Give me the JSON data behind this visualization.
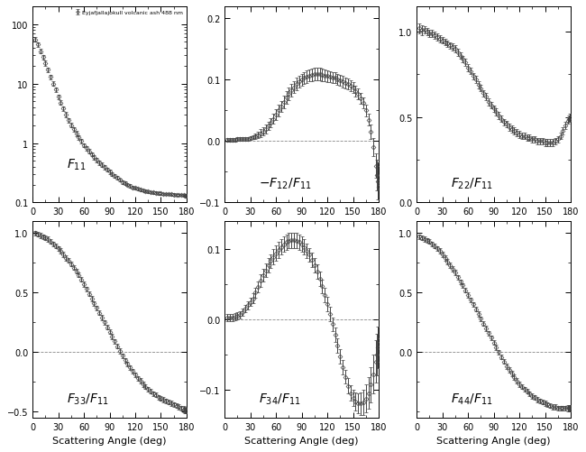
{
  "title": "Eyjafjallajokull volcanic ash 488 nm",
  "angles": [
    3,
    6,
    9,
    12,
    15,
    18,
    21,
    24,
    27,
    30,
    33,
    36,
    39,
    42,
    45,
    48,
    51,
    54,
    57,
    60,
    63,
    66,
    69,
    72,
    75,
    78,
    81,
    84,
    87,
    90,
    93,
    96,
    99,
    102,
    105,
    108,
    111,
    114,
    117,
    120,
    123,
    126,
    129,
    132,
    135,
    138,
    141,
    144,
    147,
    150,
    153,
    156,
    159,
    162,
    165,
    168,
    171,
    174,
    177,
    178,
    179,
    180
  ],
  "F11": [
    55,
    45,
    35,
    28,
    22,
    17,
    13,
    10,
    8,
    6,
    4.8,
    3.8,
    3.0,
    2.4,
    2.0,
    1.7,
    1.45,
    1.25,
    1.08,
    0.92,
    0.82,
    0.73,
    0.65,
    0.58,
    0.52,
    0.47,
    0.43,
    0.39,
    0.36,
    0.33,
    0.3,
    0.28,
    0.26,
    0.24,
    0.22,
    0.21,
    0.2,
    0.19,
    0.18,
    0.175,
    0.17,
    0.165,
    0.16,
    0.155,
    0.152,
    0.15,
    0.148,
    0.145,
    0.143,
    0.142,
    0.14,
    0.139,
    0.138,
    0.137,
    0.136,
    0.135,
    0.134,
    0.133,
    0.132,
    0.131,
    0.13,
    0.13
  ],
  "F11_err": [
    5,
    4,
    3,
    2.5,
    2,
    1.5,
    1.2,
    0.9,
    0.7,
    0.5,
    0.4,
    0.35,
    0.28,
    0.22,
    0.18,
    0.15,
    0.13,
    0.11,
    0.09,
    0.08,
    0.07,
    0.06,
    0.055,
    0.05,
    0.045,
    0.04,
    0.035,
    0.03,
    0.028,
    0.025,
    0.022,
    0.02,
    0.018,
    0.016,
    0.015,
    0.013,
    0.012,
    0.011,
    0.01,
    0.01,
    0.009,
    0.009,
    0.008,
    0.008,
    0.008,
    0.007,
    0.007,
    0.007,
    0.007,
    0.007,
    0.006,
    0.006,
    0.006,
    0.006,
    0.006,
    0.006,
    0.006,
    0.005,
    0.005,
    0.005,
    0.005,
    0.005
  ],
  "F12": [
    0.002,
    0.002,
    0.002,
    0.002,
    0.003,
    0.003,
    0.003,
    0.003,
    0.004,
    0.005,
    0.006,
    0.008,
    0.01,
    0.013,
    0.016,
    0.02,
    0.025,
    0.03,
    0.036,
    0.043,
    0.05,
    0.057,
    0.064,
    0.071,
    0.077,
    0.083,
    0.088,
    0.093,
    0.097,
    0.1,
    0.103,
    0.105,
    0.107,
    0.108,
    0.109,
    0.109,
    0.109,
    0.108,
    0.107,
    0.106,
    0.105,
    0.104,
    0.103,
    0.101,
    0.099,
    0.097,
    0.095,
    0.093,
    0.09,
    0.087,
    0.082,
    0.077,
    0.07,
    0.062,
    0.05,
    0.035,
    0.015,
    -0.01,
    -0.04,
    -0.055,
    -0.065,
    -0.075
  ],
  "F12_err": [
    0.003,
    0.003,
    0.003,
    0.003,
    0.003,
    0.003,
    0.003,
    0.003,
    0.003,
    0.003,
    0.003,
    0.004,
    0.005,
    0.006,
    0.006,
    0.007,
    0.007,
    0.008,
    0.008,
    0.009,
    0.009,
    0.009,
    0.01,
    0.01,
    0.01,
    0.01,
    0.01,
    0.01,
    0.01,
    0.01,
    0.01,
    0.01,
    0.01,
    0.01,
    0.01,
    0.01,
    0.01,
    0.01,
    0.01,
    0.01,
    0.009,
    0.009,
    0.009,
    0.009,
    0.009,
    0.009,
    0.009,
    0.009,
    0.009,
    0.009,
    0.009,
    0.009,
    0.009,
    0.009,
    0.01,
    0.01,
    0.012,
    0.015,
    0.02,
    0.025,
    0.03,
    0.035
  ],
  "F22": [
    1.02,
    1.01,
    1.01,
    1.0,
    0.99,
    0.99,
    0.98,
    0.97,
    0.96,
    0.95,
    0.94,
    0.93,
    0.92,
    0.91,
    0.9,
    0.88,
    0.86,
    0.84,
    0.82,
    0.79,
    0.77,
    0.74,
    0.72,
    0.69,
    0.67,
    0.64,
    0.62,
    0.59,
    0.57,
    0.55,
    0.53,
    0.51,
    0.49,
    0.47,
    0.46,
    0.44,
    0.43,
    0.42,
    0.41,
    0.4,
    0.39,
    0.39,
    0.38,
    0.38,
    0.37,
    0.37,
    0.36,
    0.36,
    0.36,
    0.35,
    0.35,
    0.35,
    0.35,
    0.36,
    0.37,
    0.39,
    0.42,
    0.45,
    0.48,
    0.49,
    0.5,
    0.5
  ],
  "F22_err": [
    0.03,
    0.03,
    0.02,
    0.02,
    0.02,
    0.02,
    0.02,
    0.02,
    0.02,
    0.02,
    0.02,
    0.02,
    0.02,
    0.02,
    0.02,
    0.02,
    0.02,
    0.02,
    0.02,
    0.02,
    0.02,
    0.02,
    0.02,
    0.02,
    0.02,
    0.02,
    0.02,
    0.02,
    0.02,
    0.02,
    0.02,
    0.02,
    0.02,
    0.02,
    0.02,
    0.02,
    0.02,
    0.02,
    0.02,
    0.02,
    0.02,
    0.02,
    0.02,
    0.02,
    0.02,
    0.02,
    0.02,
    0.02,
    0.02,
    0.02,
    0.02,
    0.02,
    0.02,
    0.02,
    0.02,
    0.02,
    0.02,
    0.02,
    0.02,
    0.02,
    0.02,
    0.02
  ],
  "F33": [
    1.0,
    0.99,
    0.98,
    0.97,
    0.96,
    0.95,
    0.93,
    0.91,
    0.89,
    0.87,
    0.85,
    0.82,
    0.79,
    0.77,
    0.74,
    0.71,
    0.68,
    0.65,
    0.61,
    0.57,
    0.53,
    0.49,
    0.45,
    0.41,
    0.37,
    0.33,
    0.29,
    0.25,
    0.21,
    0.17,
    0.13,
    0.09,
    0.05,
    0.01,
    -0.03,
    -0.07,
    -0.1,
    -0.13,
    -0.16,
    -0.19,
    -0.22,
    -0.24,
    -0.27,
    -0.29,
    -0.31,
    -0.33,
    -0.35,
    -0.36,
    -0.38,
    -0.39,
    -0.4,
    -0.41,
    -0.42,
    -0.43,
    -0.44,
    -0.45,
    -0.46,
    -0.47,
    -0.48,
    -0.485,
    -0.49,
    -0.49
  ],
  "F33_err": [
    0.02,
    0.02,
    0.02,
    0.02,
    0.02,
    0.02,
    0.02,
    0.02,
    0.02,
    0.02,
    0.02,
    0.02,
    0.02,
    0.02,
    0.02,
    0.02,
    0.02,
    0.02,
    0.02,
    0.02,
    0.02,
    0.02,
    0.02,
    0.02,
    0.02,
    0.02,
    0.02,
    0.02,
    0.02,
    0.02,
    0.02,
    0.02,
    0.02,
    0.02,
    0.02,
    0.02,
    0.02,
    0.02,
    0.02,
    0.02,
    0.02,
    0.02,
    0.02,
    0.02,
    0.02,
    0.02,
    0.02,
    0.02,
    0.02,
    0.02,
    0.02,
    0.02,
    0.02,
    0.02,
    0.02,
    0.02,
    0.02,
    0.02,
    0.025,
    0.025,
    0.025,
    0.025
  ],
  "F34": [
    0.003,
    0.003,
    0.003,
    0.004,
    0.005,
    0.006,
    0.01,
    0.015,
    0.02,
    0.025,
    0.03,
    0.038,
    0.046,
    0.055,
    0.063,
    0.07,
    0.077,
    0.083,
    0.089,
    0.094,
    0.099,
    0.103,
    0.107,
    0.11,
    0.112,
    0.113,
    0.113,
    0.112,
    0.11,
    0.107,
    0.103,
    0.098,
    0.092,
    0.085,
    0.077,
    0.068,
    0.058,
    0.047,
    0.035,
    0.022,
    0.008,
    -0.007,
    -0.022,
    -0.037,
    -0.053,
    -0.068,
    -0.082,
    -0.095,
    -0.105,
    -0.112,
    -0.117,
    -0.12,
    -0.12,
    -0.118,
    -0.113,
    -0.105,
    -0.093,
    -0.078,
    -0.06,
    -0.05,
    -0.04,
    -0.03
  ],
  "F34_err": [
    0.005,
    0.005,
    0.005,
    0.005,
    0.005,
    0.005,
    0.005,
    0.005,
    0.006,
    0.006,
    0.007,
    0.007,
    0.008,
    0.009,
    0.009,
    0.01,
    0.01,
    0.01,
    0.011,
    0.011,
    0.011,
    0.011,
    0.011,
    0.011,
    0.011,
    0.011,
    0.011,
    0.011,
    0.011,
    0.011,
    0.011,
    0.01,
    0.01,
    0.01,
    0.01,
    0.01,
    0.01,
    0.01,
    0.01,
    0.01,
    0.01,
    0.01,
    0.01,
    0.01,
    0.01,
    0.01,
    0.01,
    0.011,
    0.011,
    0.012,
    0.013,
    0.014,
    0.016,
    0.018,
    0.02,
    0.022,
    0.025,
    0.028,
    0.03,
    0.03,
    0.03,
    0.03
  ],
  "F44": [
    0.97,
    0.96,
    0.95,
    0.94,
    0.93,
    0.91,
    0.89,
    0.87,
    0.85,
    0.82,
    0.79,
    0.76,
    0.73,
    0.7,
    0.67,
    0.63,
    0.59,
    0.56,
    0.52,
    0.48,
    0.44,
    0.4,
    0.36,
    0.32,
    0.28,
    0.24,
    0.2,
    0.16,
    0.12,
    0.08,
    0.04,
    0.0,
    -0.04,
    -0.08,
    -0.12,
    -0.15,
    -0.18,
    -0.21,
    -0.24,
    -0.27,
    -0.29,
    -0.31,
    -0.33,
    -0.35,
    -0.37,
    -0.38,
    -0.4,
    -0.41,
    -0.42,
    -0.43,
    -0.44,
    -0.45,
    -0.46,
    -0.46,
    -0.47,
    -0.47,
    -0.47,
    -0.47,
    -0.47,
    -0.47,
    -0.47,
    -0.47
  ],
  "F44_err": [
    0.02,
    0.02,
    0.02,
    0.02,
    0.02,
    0.02,
    0.02,
    0.02,
    0.02,
    0.02,
    0.02,
    0.02,
    0.02,
    0.02,
    0.02,
    0.02,
    0.02,
    0.02,
    0.02,
    0.02,
    0.02,
    0.02,
    0.02,
    0.02,
    0.02,
    0.02,
    0.02,
    0.02,
    0.02,
    0.02,
    0.02,
    0.02,
    0.02,
    0.02,
    0.02,
    0.02,
    0.02,
    0.02,
    0.02,
    0.02,
    0.02,
    0.02,
    0.02,
    0.02,
    0.02,
    0.02,
    0.02,
    0.02,
    0.02,
    0.02,
    0.02,
    0.02,
    0.02,
    0.02,
    0.02,
    0.02,
    0.02,
    0.02,
    0.025,
    0.025,
    0.025,
    0.025
  ],
  "marker_color": "#444444",
  "marker_size": 2.5,
  "elinewidth": 0.7,
  "capsize": 1.2,
  "xlabel": "Scattering Angle (deg)",
  "xticks": [
    0,
    30,
    60,
    90,
    120,
    150,
    180
  ],
  "background_color": "#ffffff",
  "label_fontsize": 10,
  "tick_labelsize": 7,
  "axes_linewidth": 0.7
}
